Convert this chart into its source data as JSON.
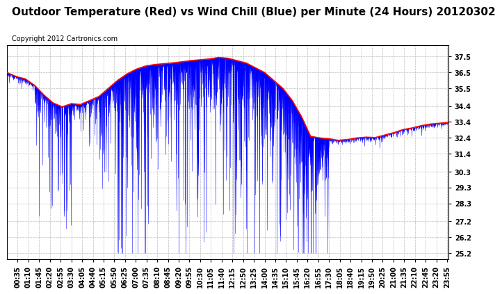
{
  "title": "Outdoor Temperature (Red) vs Wind Chill (Blue) per Minute (24 Hours) 20120302",
  "copyright": "Copyright 2012 Cartronics.com",
  "ylabel_right_ticks": [
    25.2,
    26.2,
    27.2,
    28.3,
    29.3,
    30.3,
    31.4,
    32.4,
    33.4,
    34.4,
    35.5,
    36.5,
    37.5
  ],
  "ylim": [
    24.8,
    38.2
  ],
  "xlim": [
    0,
    1439
  ],
  "temp_color": "red",
  "wind_color": "blue",
  "bg_color": "white",
  "grid_color": "#bbbbbb",
  "title_fontsize": 11,
  "copyright_fontsize": 7,
  "tick_fontsize": 7
}
